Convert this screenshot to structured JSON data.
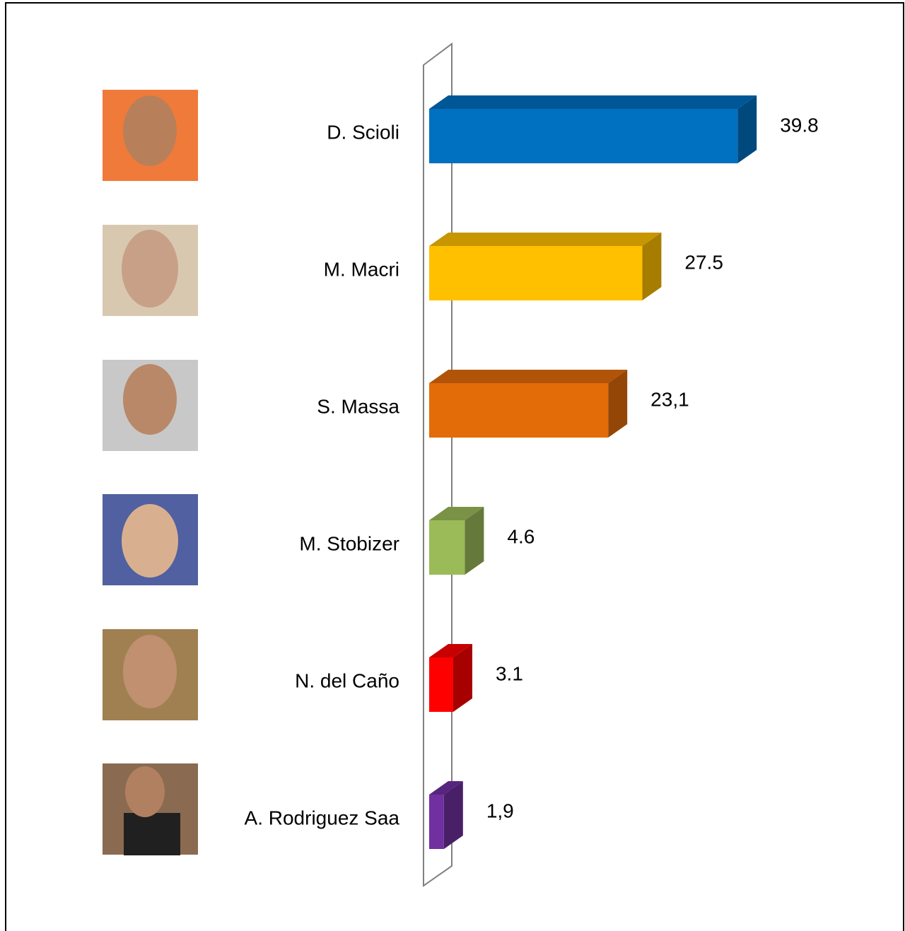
{
  "chart_data": {
    "type": "bar3d",
    "categories": [
      "D. Scioli",
      "M. Macri",
      "S. Massa",
      "M. Stobizer",
      "N. del  Caño",
      "A. Rodriguez Saa"
    ],
    "values": [
      39.8,
      27.5,
      23.1,
      4.6,
      3.1,
      1.9
    ],
    "value_labels": [
      "39.8",
      "27.5",
      "23,1",
      "4.6",
      "3.1",
      "1,9"
    ],
    "colors": [
      "#0070c0",
      "#ffc000",
      "#e36c09",
      "#9bbb59",
      "#ff0000",
      "#7030a0"
    ]
  }
}
